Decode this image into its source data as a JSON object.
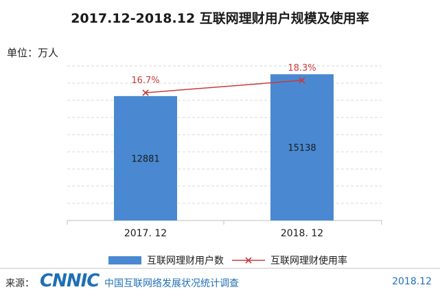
{
  "unit_label": "单位：万人",
  "chart_data": {
    "type": "bar",
    "title": "2017.12-2018.12 互联网理财用户规模及使用率",
    "categories": [
      "2017. 12",
      "2018. 12"
    ],
    "series": [
      {
        "name": "互联网理财用户数",
        "type": "bar",
        "values": [
          12881,
          15138
        ],
        "value_labels": [
          "12881",
          "15138"
        ],
        "color": "#4a89d1"
      },
      {
        "name": "互联网理财使用率",
        "type": "line",
        "values": [
          16.7,
          18.3
        ],
        "value_labels": [
          "16.7%",
          "18.3%"
        ],
        "color": "#c83a3a",
        "marker": "x"
      }
    ],
    "ylim": [
      0,
      16000
    ],
    "grid": true,
    "legend_position": "bottom"
  },
  "footer": {
    "source_label": "来源：",
    "logo_text": "CNNIC",
    "org_name": "中国互联网络发展状况统计调查",
    "date": "2018.12"
  }
}
